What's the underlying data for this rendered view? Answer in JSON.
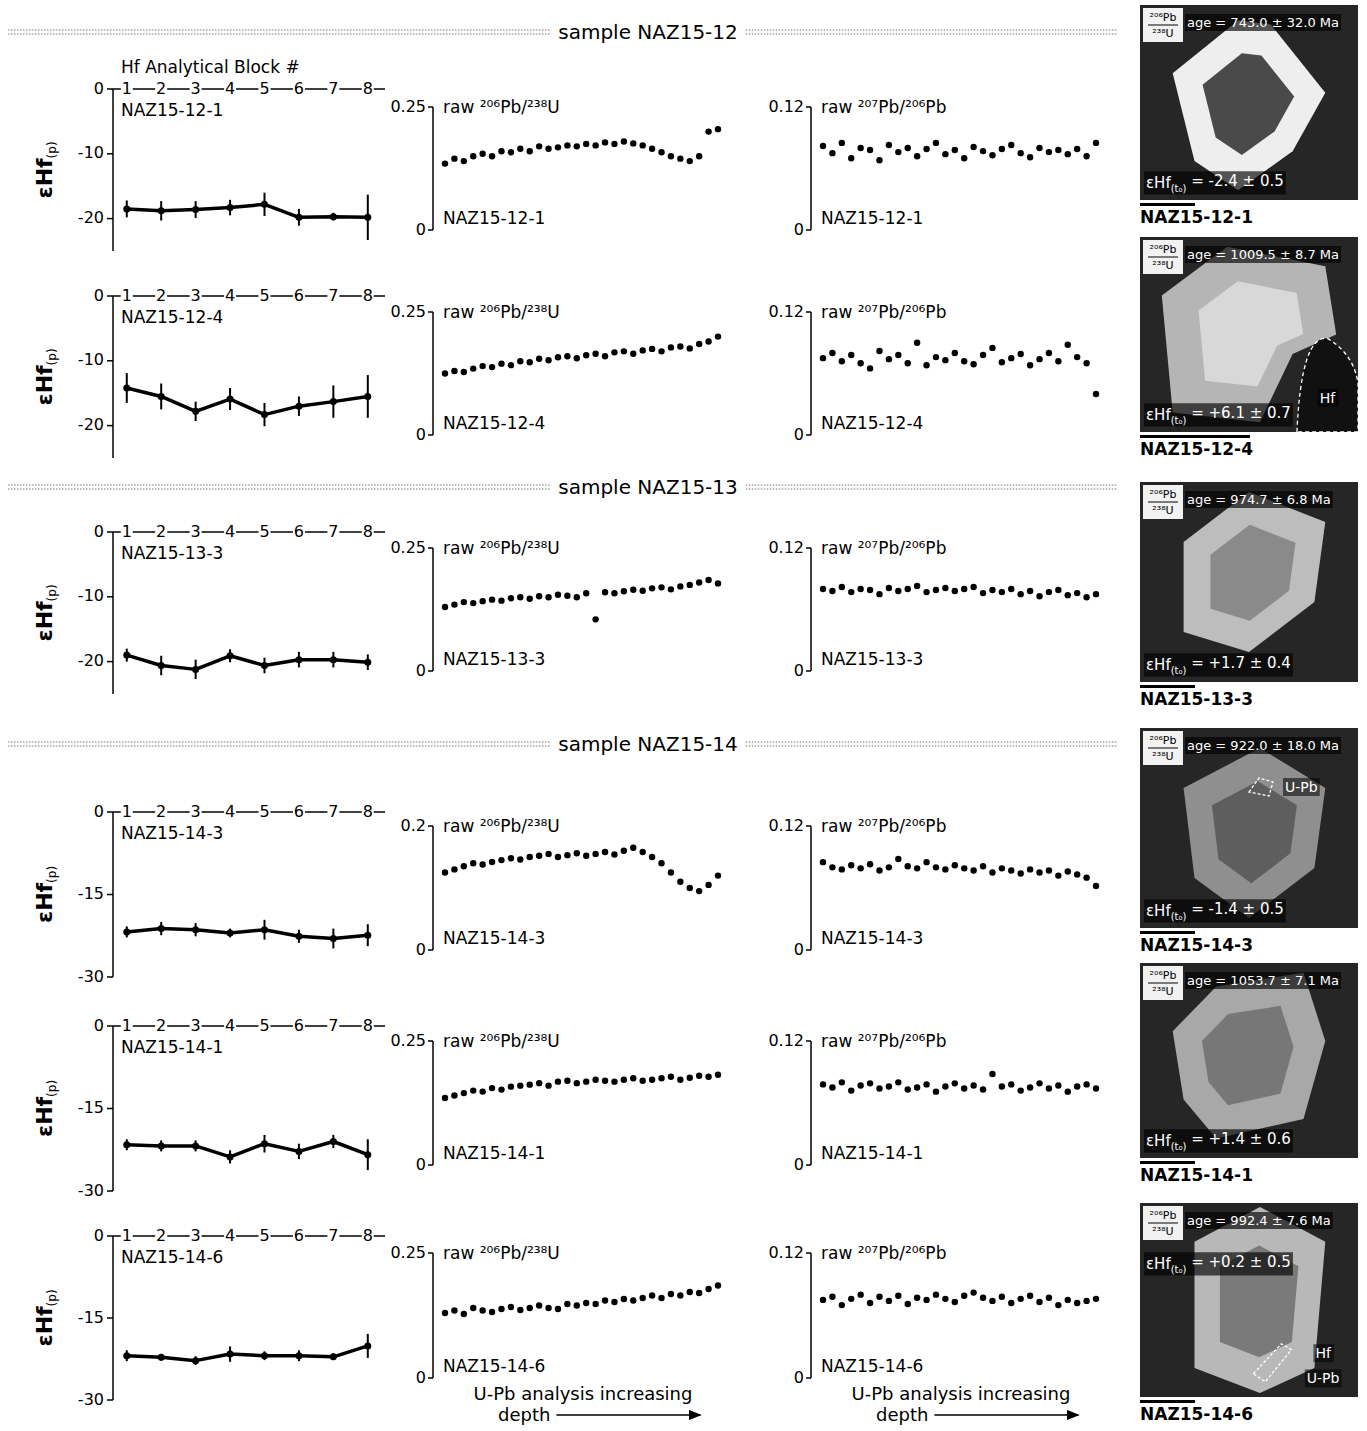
{
  "sample_headers": [
    "sample NAZ15-12",
    "sample NAZ15-13",
    "sample NAZ15-14"
  ],
  "chart_data": [
    {
      "type": "line",
      "title": "NAZ15-12-1",
      "ylabel": "εHf(p)",
      "xlabel": "Hf Analytical Block #",
      "x": [
        1,
        2,
        3,
        4,
        5,
        6,
        7,
        8
      ],
      "xlim": [
        0.6,
        8.5
      ],
      "xticks": [
        1,
        2,
        3,
        4,
        5,
        6,
        7,
        8
      ],
      "ylim": [
        -25,
        0
      ],
      "yticks": [
        0,
        -10,
        -20
      ],
      "marker": "circle",
      "color": "#000000",
      "values": [
        -18.5,
        -18.8,
        -18.6,
        -18.3,
        -17.8,
        -19.8,
        -19.7,
        -19.8
      ],
      "errors": [
        1.3,
        1.5,
        1.3,
        1.2,
        1.8,
        1.3,
        0.6,
        3.5
      ]
    },
    {
      "type": "scatter",
      "title": "NAZ15-12-1",
      "ylabel": "raw ²⁰⁶Pb/²³⁸U",
      "ylim": [
        0,
        0.25
      ],
      "yticks": [
        0,
        0.25
      ],
      "marker": "circle",
      "color": "#000000",
      "values": [
        0.135,
        0.145,
        0.14,
        0.15,
        0.155,
        0.15,
        0.16,
        0.158,
        0.165,
        0.16,
        0.17,
        0.165,
        0.168,
        0.172,
        0.17,
        0.175,
        0.172,
        0.178,
        0.175,
        0.18,
        0.176,
        0.172,
        0.165,
        0.158,
        0.15,
        0.145,
        0.14,
        0.15,
        0.2,
        0.205
      ]
    },
    {
      "type": "scatter",
      "title": "NAZ15-12-1",
      "ylabel": "raw ²⁰⁷Pb/²⁰⁶Pb",
      "ylim": [
        0,
        0.12
      ],
      "yticks": [
        0,
        0.12
      ],
      "marker": "circle",
      "color": "#000000",
      "values": [
        0.082,
        0.075,
        0.085,
        0.07,
        0.08,
        0.078,
        0.068,
        0.083,
        0.076,
        0.08,
        0.072,
        0.079,
        0.085,
        0.074,
        0.078,
        0.07,
        0.081,
        0.077,
        0.073,
        0.079,
        0.083,
        0.075,
        0.071,
        0.08,
        0.076,
        0.078,
        0.074,
        0.079,
        0.072,
        0.085
      ]
    },
    {
      "type": "line",
      "title": "NAZ15-12-4",
      "ylabel": "εHf(p)",
      "x": [
        1,
        2,
        3,
        4,
        5,
        6,
        7,
        8
      ],
      "xlim": [
        0.6,
        8.5
      ],
      "xticks": [
        1,
        2,
        3,
        4,
        5,
        6,
        7,
        8
      ],
      "ylim": [
        -25,
        0
      ],
      "yticks": [
        0,
        -10,
        -20
      ],
      "marker": "circle",
      "color": "#000000",
      "values": [
        -14.2,
        -15.5,
        -17.8,
        -15.9,
        -18.3,
        -17.0,
        -16.3,
        -15.5
      ],
      "errors": [
        2.3,
        2.0,
        1.5,
        1.7,
        1.8,
        1.5,
        2.5,
        3.3
      ]
    },
    {
      "type": "scatter",
      "title": "NAZ15-12-4",
      "ylabel": "raw ²⁰⁶Pb/²³⁸U",
      "ylim": [
        0,
        0.25
      ],
      "yticks": [
        0,
        0.25
      ],
      "marker": "circle",
      "color": "#000000",
      "values": [
        0.125,
        0.13,
        0.128,
        0.135,
        0.14,
        0.138,
        0.145,
        0.142,
        0.15,
        0.148,
        0.155,
        0.152,
        0.158,
        0.16,
        0.156,
        0.162,
        0.165,
        0.16,
        0.168,
        0.17,
        0.165,
        0.172,
        0.175,
        0.17,
        0.178,
        0.18,
        0.176,
        0.185,
        0.19,
        0.2
      ]
    },
    {
      "type": "scatter",
      "title": "NAZ15-12-4",
      "ylabel": "raw ²⁰⁷Pb/²⁰⁶Pb",
      "ylim": [
        0,
        0.12
      ],
      "yticks": [
        0,
        0.12
      ],
      "marker": "circle",
      "color": "#000000",
      "values": [
        0.075,
        0.08,
        0.072,
        0.078,
        0.07,
        0.065,
        0.082,
        0.074,
        0.078,
        0.07,
        0.09,
        0.068,
        0.076,
        0.073,
        0.08,
        0.072,
        0.069,
        0.078,
        0.085,
        0.071,
        0.075,
        0.079,
        0.068,
        0.074,
        0.08,
        0.072,
        0.088,
        0.076,
        0.07,
        0.04
      ]
    },
    {
      "type": "line",
      "title": "NAZ15-13-3",
      "ylabel": "εHf(p)",
      "x": [
        1,
        2,
        3,
        4,
        5,
        6,
        7,
        8
      ],
      "xlim": [
        0.6,
        8.5
      ],
      "xticks": [
        1,
        2,
        3,
        4,
        5,
        6,
        7,
        8
      ],
      "ylim": [
        -25,
        0
      ],
      "yticks": [
        0,
        -10,
        -20
      ],
      "marker": "circle",
      "color": "#000000",
      "values": [
        -19.0,
        -20.6,
        -21.2,
        -19.1,
        -20.6,
        -19.7,
        -19.7,
        -20.1
      ],
      "errors": [
        1.0,
        1.5,
        1.5,
        1.0,
        1.2,
        1.2,
        1.2,
        1.2
      ]
    },
    {
      "type": "scatter",
      "title": "NAZ15-13-3",
      "ylabel": "raw ²⁰⁶Pb/²³⁸U",
      "ylim": [
        0,
        0.25
      ],
      "yticks": [
        0,
        0.25
      ],
      "marker": "circle",
      "color": "#000000",
      "values": [
        0.13,
        0.135,
        0.14,
        0.138,
        0.142,
        0.145,
        0.143,
        0.148,
        0.15,
        0.147,
        0.152,
        0.15,
        0.155,
        0.153,
        0.15,
        0.158,
        0.105,
        0.16,
        0.158,
        0.162,
        0.165,
        0.163,
        0.168,
        0.17,
        0.166,
        0.172,
        0.175,
        0.18,
        0.185,
        0.178
      ]
    },
    {
      "type": "scatter",
      "title": "NAZ15-13-3",
      "ylabel": "raw ²⁰⁷Pb/²⁰⁶Pb",
      "ylim": [
        0,
        0.12
      ],
      "yticks": [
        0,
        0.12
      ],
      "marker": "circle",
      "color": "#000000",
      "values": [
        0.08,
        0.078,
        0.082,
        0.077,
        0.08,
        0.079,
        0.075,
        0.081,
        0.078,
        0.08,
        0.083,
        0.077,
        0.079,
        0.081,
        0.078,
        0.08,
        0.082,
        0.076,
        0.079,
        0.077,
        0.08,
        0.075,
        0.078,
        0.073,
        0.077,
        0.079,
        0.074,
        0.076,
        0.072,
        0.075
      ]
    },
    {
      "type": "line",
      "title": "NAZ15-14-3",
      "ylabel": "εHf(p)",
      "x": [
        1,
        2,
        3,
        4,
        5,
        6,
        7,
        8
      ],
      "xlim": [
        0.6,
        8.5
      ],
      "xticks": [
        1,
        2,
        3,
        4,
        5,
        6,
        7,
        8
      ],
      "ylim": [
        -30,
        0
      ],
      "yticks": [
        0,
        -15,
        -30
      ],
      "marker": "circle",
      "color": "#000000",
      "values": [
        -21.8,
        -21.2,
        -21.4,
        -22.0,
        -21.4,
        -22.6,
        -23.0,
        -22.4
      ],
      "errors": [
        1.0,
        1.2,
        1.2,
        0.8,
        1.8,
        1.2,
        1.8,
        2.0
      ]
    },
    {
      "type": "scatter",
      "title": "NAZ15-14-3",
      "ylabel": "raw ²⁰⁶Pb/²³⁸U",
      "ylim": [
        0,
        0.2
      ],
      "yticks": [
        0,
        0.2
      ],
      "marker": "circle",
      "color": "#000000",
      "values": [
        0.125,
        0.13,
        0.135,
        0.14,
        0.138,
        0.142,
        0.145,
        0.148,
        0.146,
        0.15,
        0.152,
        0.155,
        0.15,
        0.153,
        0.156,
        0.152,
        0.155,
        0.158,
        0.154,
        0.16,
        0.165,
        0.158,
        0.15,
        0.14,
        0.125,
        0.11,
        0.1,
        0.095,
        0.105,
        0.12
      ]
    },
    {
      "type": "scatter",
      "title": "NAZ15-14-3",
      "ylabel": "raw ²⁰⁷Pb/²⁰⁶Pb",
      "ylim": [
        0,
        0.12
      ],
      "yticks": [
        0,
        0.12
      ],
      "marker": "circle",
      "color": "#000000",
      "values": [
        0.085,
        0.08,
        0.078,
        0.082,
        0.079,
        0.083,
        0.077,
        0.08,
        0.088,
        0.081,
        0.079,
        0.085,
        0.08,
        0.078,
        0.082,
        0.079,
        0.077,
        0.081,
        0.075,
        0.079,
        0.077,
        0.074,
        0.078,
        0.075,
        0.077,
        0.072,
        0.076,
        0.073,
        0.07,
        0.062
      ]
    },
    {
      "type": "line",
      "title": "NAZ15-14-1",
      "ylabel": "εHf(p)",
      "x": [
        1,
        2,
        3,
        4,
        5,
        6,
        7,
        8
      ],
      "xlim": [
        0.6,
        8.5
      ],
      "xticks": [
        1,
        2,
        3,
        4,
        5,
        6,
        7,
        8
      ],
      "ylim": [
        -30,
        0
      ],
      "yticks": [
        0,
        -15,
        -30
      ],
      "marker": "circle",
      "color": "#000000",
      "values": [
        -21.6,
        -21.8,
        -21.8,
        -23.8,
        -21.4,
        -22.8,
        -21.0,
        -23.4
      ],
      "errors": [
        1.0,
        1.0,
        1.0,
        1.2,
        1.6,
        1.4,
        1.2,
        2.8
      ]
    },
    {
      "type": "scatter",
      "title": "NAZ15-14-1",
      "ylabel": "raw ²⁰⁶Pb/²³⁸U",
      "ylim": [
        0,
        0.25
      ],
      "yticks": [
        0,
        0.25
      ],
      "marker": "circle",
      "color": "#000000",
      "values": [
        0.135,
        0.14,
        0.145,
        0.15,
        0.148,
        0.155,
        0.152,
        0.158,
        0.16,
        0.162,
        0.165,
        0.16,
        0.168,
        0.17,
        0.165,
        0.168,
        0.172,
        0.17,
        0.168,
        0.172,
        0.175,
        0.17,
        0.172,
        0.175,
        0.178,
        0.172,
        0.176,
        0.18,
        0.178,
        0.182
      ]
    },
    {
      "type": "scatter",
      "title": "NAZ15-14-1",
      "ylabel": "raw ²⁰⁷Pb/²⁰⁶Pb",
      "ylim": [
        0,
        0.12
      ],
      "yticks": [
        0,
        0.12
      ],
      "marker": "circle",
      "color": "#000000",
      "values": [
        0.078,
        0.075,
        0.08,
        0.072,
        0.077,
        0.079,
        0.074,
        0.076,
        0.08,
        0.073,
        0.075,
        0.078,
        0.071,
        0.076,
        0.079,
        0.074,
        0.077,
        0.073,
        0.088,
        0.076,
        0.078,
        0.072,
        0.075,
        0.079,
        0.074,
        0.077,
        0.071,
        0.076,
        0.078,
        0.074
      ]
    },
    {
      "type": "line",
      "title": "NAZ15-14-6",
      "ylabel": "εHf(p)",
      "x": [
        1,
        2,
        3,
        4,
        5,
        6,
        7,
        8
      ],
      "xlim": [
        0.6,
        8.5
      ],
      "xticks": [
        1,
        2,
        3,
        4,
        5,
        6,
        7,
        8
      ],
      "ylim": [
        -30,
        0
      ],
      "yticks": [
        0,
        -15,
        -30
      ],
      "marker": "circle",
      "color": "#000000",
      "values": [
        -21.9,
        -22.2,
        -22.8,
        -21.6,
        -21.9,
        -21.9,
        -22.1,
        -20.1
      ],
      "errors": [
        1.0,
        0.6,
        0.8,
        1.4,
        0.8,
        1.0,
        0.6,
        2.2
      ]
    },
    {
      "type": "scatter",
      "title": "NAZ15-14-6",
      "ylabel": "raw ²⁰⁶Pb/²³⁸U",
      "xlabel": "U-Pb analysis increasing depth",
      "ylim": [
        0,
        0.25
      ],
      "yticks": [
        0,
        0.25
      ],
      "marker": "circle",
      "color": "#000000",
      "values": [
        0.13,
        0.135,
        0.128,
        0.14,
        0.135,
        0.132,
        0.138,
        0.142,
        0.136,
        0.14,
        0.145,
        0.14,
        0.138,
        0.148,
        0.145,
        0.15,
        0.148,
        0.155,
        0.152,
        0.158,
        0.155,
        0.16,
        0.165,
        0.16,
        0.168,
        0.165,
        0.172,
        0.17,
        0.178,
        0.185
      ]
    },
    {
      "type": "scatter",
      "title": "NAZ15-14-6",
      "ylabel": "raw ²⁰⁷Pb/²⁰⁶Pb",
      "xlabel": "U-Pb analysis increasing depth",
      "ylim": [
        0,
        0.12
      ],
      "yticks": [
        0,
        0.12
      ],
      "marker": "circle",
      "color": "#000000",
      "values": [
        0.075,
        0.078,
        0.07,
        0.076,
        0.08,
        0.072,
        0.078,
        0.074,
        0.079,
        0.071,
        0.077,
        0.075,
        0.08,
        0.076,
        0.073,
        0.079,
        0.082,
        0.077,
        0.074,
        0.078,
        0.072,
        0.076,
        0.079,
        0.073,
        0.077,
        0.07,
        0.075,
        0.072,
        0.074,
        0.076
      ]
    }
  ],
  "grain_images": [
    {
      "name": "NAZ15-12-1",
      "age_ratio": [
        "²⁰⁶Pb",
        "²³⁸U"
      ],
      "age_text": "age = 743.0 ± 32.0 Ma",
      "ehf_label": "εHf(t₀) = -2.4 ± 0.5",
      "annotations": []
    },
    {
      "name": "NAZ15-12-4",
      "age_ratio": [
        "²⁰⁶Pb",
        "²³⁸U"
      ],
      "age_text": "age = 1009.5 ± 8.7 Ma",
      "ehf_label": "εHf(t₀) = +6.1 ± 0.7",
      "annotations": [
        "Hf"
      ]
    },
    {
      "name": "NAZ15-13-3",
      "age_ratio": [
        "²⁰⁶Pb",
        "²³⁸U"
      ],
      "age_text": "age = 974.7 ± 6.8 Ma",
      "ehf_label": "εHf(t₀) = +1.7 ± 0.4",
      "annotations": []
    },
    {
      "name": "NAZ15-14-3",
      "age_ratio": [
        "²⁰⁶Pb",
        "²³⁸U"
      ],
      "age_text": "age = 922.0 ± 18.0 Ma",
      "ehf_label": "εHf(t₀) = -1.4 ± 0.5",
      "annotations": [
        "U-Pb"
      ]
    },
    {
      "name": "NAZ15-14-1",
      "age_ratio": [
        "²⁰⁶Pb",
        "²³⁸U"
      ],
      "age_text": "age = 1053.7 ± 7.1 Ma",
      "ehf_label": "εHf(t₀) = +1.4 ± 0.6",
      "annotations": []
    },
    {
      "name": "NAZ15-14-6",
      "age_ratio": [
        "²⁰⁶Pb",
        "²³⁸U"
      ],
      "age_text": "age = 992.4 ± 7.6 Ma",
      "ehf_label": "εHf(t₀) = +0.2 ± 0.5",
      "annotations": [
        "Hf",
        "U-Pb"
      ]
    }
  ]
}
